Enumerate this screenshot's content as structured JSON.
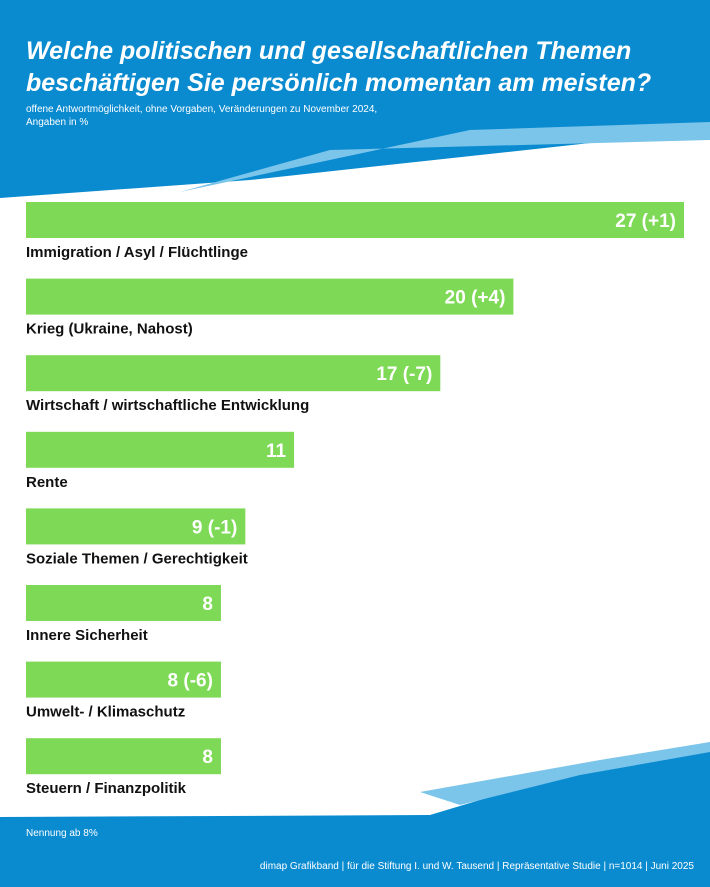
{
  "title": "Welche politischen und gesellschaftlichen Themen beschäftigen Sie persönlich momentan am meisten?",
  "subtitle_line1": "offene Antwortmöglichkeit, ohne Vorgaben, Veränderungen zu November 2024,",
  "subtitle_line2": "Angaben in %",
  "footnote": "Nennung ab 8%",
  "source": "dimap Grafikband | für die Stiftung I. und W. Tausend | Repräsentative Studie | n=1014 | Juni 2025",
  "colors": {
    "header_blue": "#0a8bd0",
    "wave_light": "#7cc5ea",
    "bar_green": "#7ed957"
  },
  "chart_data": {
    "type": "bar",
    "orientation": "horizontal",
    "unit": "%",
    "categories": [
      "Immigration / Asyl / Flüchtlinge",
      "Krieg (Ukraine, Nahost)",
      "Wirtschaft / wirtschaftliche Entwicklung",
      "Rente",
      "Soziale Themen / Gerechtigkeit",
      "Innere Sicherheit",
      "Umwelt- / Klimaschutz",
      "Steuern / Finanzpolitik"
    ],
    "values": [
      27,
      20,
      17,
      11,
      9,
      8,
      8,
      8
    ],
    "value_labels": [
      "27 (+1)",
      "20 (+4)",
      "17 (-7)",
      "11",
      "9 (-1)",
      "8",
      "8 (-6)",
      "8"
    ],
    "xlim": [
      0,
      27
    ]
  }
}
